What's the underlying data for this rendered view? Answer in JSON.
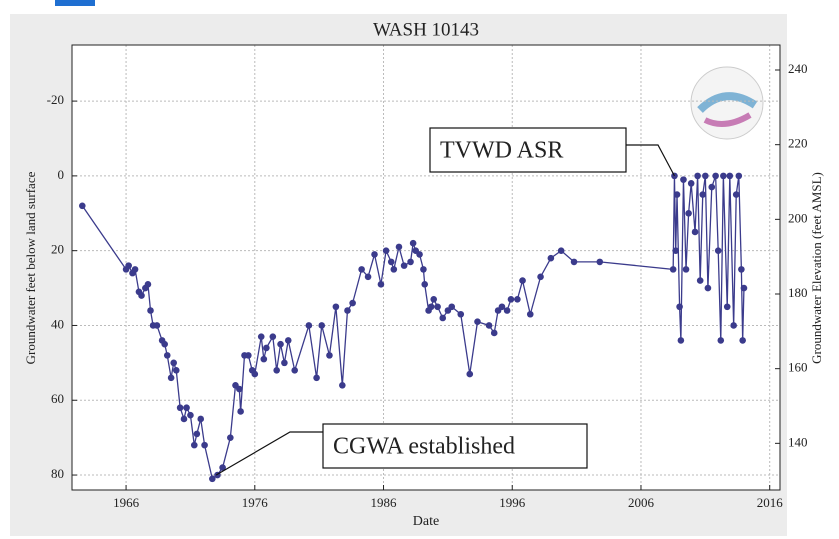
{
  "chart_data": {
    "type": "line",
    "title": "WASH 10143",
    "xlabel": "Date",
    "ylabel": "Groundwater feet below land surface",
    "y2label": "Groundwater Elevation (feet AMSL)",
    "color": "#3b3b8c",
    "x": [
      1962.6,
      1966,
      1966.2,
      1966.5,
      1966.7,
      1967,
      1967.2,
      1967.5,
      1967.7,
      1967.9,
      1968.1,
      1968.4,
      1968.8,
      1969,
      1969.2,
      1969.5,
      1969.7,
      1969.9,
      1970.2,
      1970.5,
      1970.7,
      1971,
      1971.3,
      1971.5,
      1971.8,
      1972.1,
      1972.7,
      1973.1,
      1973.5,
      1974.1,
      1974.5,
      1974.8,
      1974.9,
      1975.2,
      1975.5,
      1975.8,
      1976,
      1976.5,
      1976.7,
      1976.9,
      1977.4,
      1977.7,
      1978,
      1978.3,
      1978.6,
      1979.1,
      1980.2,
      1980.8,
      1981.2,
      1981.8,
      1982.3,
      1982.8,
      1983.2,
      1983.6,
      1984.3,
      1984.8,
      1985.3,
      1985.8,
      1986.2,
      1986.6,
      1986.8,
      1987.2,
      1987.6,
      1988.1,
      1988.3,
      1988.5,
      1988.8,
      1989.1,
      1989.2,
      1989.5,
      1989.7,
      1989.9,
      1990.2,
      1990.6,
      1991,
      1991.3,
      1992,
      1992.7,
      1993.3,
      1994.2,
      1994.6,
      1994.9,
      1995.2,
      1995.6,
      1995.9,
      1996.4,
      1996.8,
      1997.4,
      1998.2,
      1999,
      1999.8,
      2000.8,
      2002.8,
      2008.5,
      2008.6,
      2008.7,
      2008.8,
      2009,
      2009.1,
      2009.3,
      2009.5,
      2009.7,
      2009.9,
      2010.2,
      2010.4,
      2010.6,
      2010.8,
      2011,
      2011.2,
      2011.5,
      2011.8,
      2012,
      2012.2,
      2012.4,
      2012.7,
      2012.9,
      2013.2,
      2013.4,
      2013.6,
      2013.8,
      2013.9,
      2014
    ],
    "values": [
      8,
      25,
      24,
      26,
      25,
      31,
      32,
      30,
      29,
      36,
      40,
      40,
      44,
      45,
      48,
      54,
      50,
      52,
      62,
      65,
      62,
      64,
      72,
      69,
      65,
      72,
      81,
      80,
      78,
      70,
      56,
      57,
      63,
      48,
      48,
      52,
      53,
      43,
      49,
      46,
      43,
      52,
      45,
      50,
      44,
      52,
      40,
      54,
      40,
      48,
      35,
      56,
      36,
      34,
      25,
      27,
      21,
      29,
      20,
      23,
      25,
      19,
      24,
      23,
      18,
      20,
      21,
      25,
      29,
      36,
      35,
      33,
      35,
      38,
      36,
      35,
      37,
      53,
      39,
      40,
      42,
      36,
      35,
      36,
      33,
      33,
      28,
      37,
      27,
      22,
      20,
      23,
      23,
      25,
      0,
      20,
      5,
      35,
      44,
      1,
      25,
      10,
      2,
      15,
      0,
      28,
      5,
      0,
      30,
      3,
      0,
      20,
      44,
      0,
      35,
      0,
      40,
      5,
      0,
      25,
      44,
      30
    ],
    "xlim": [
      1961.8,
      2016.8
    ],
    "xticks": [
      1966,
      1976,
      1986,
      1996,
      2006,
      2016
    ],
    "ylim": [
      84,
      -35
    ],
    "yticks": [
      -20,
      0,
      20,
      40,
      60,
      80
    ],
    "y2lim": [
      127.5,
      246.7
    ],
    "y2ticks": [
      140,
      160,
      180,
      200,
      220,
      240
    ],
    "grid": true,
    "annotations": [
      {
        "text": "TVWD ASR",
        "x": 2008.6,
        "y": 0
      },
      {
        "text": "CGWA established",
        "x": 1973,
        "y": 80
      }
    ]
  }
}
